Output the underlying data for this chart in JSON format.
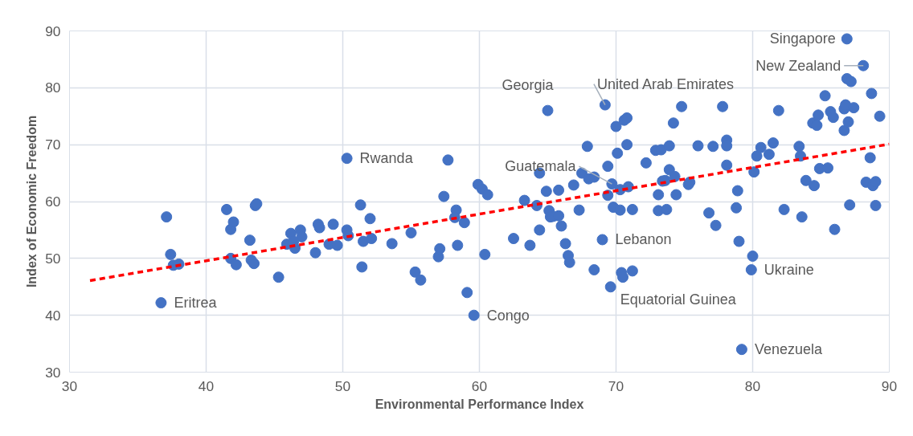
{
  "chart_data": {
    "type": "scatter",
    "xlabel": "Environmental Performance Index",
    "ylabel": "Index of Economic Freedom",
    "xlim": [
      30,
      90
    ],
    "ylim": [
      30,
      90
    ],
    "xticks": [
      30,
      40,
      50,
      60,
      70,
      80,
      90
    ],
    "yticks": [
      30,
      40,
      50,
      60,
      70,
      80,
      90
    ],
    "grid": true,
    "marker": "circle",
    "series": [
      {
        "type": "scatter",
        "color": "#4472c4",
        "x": [
          36.7,
          37.1,
          37.4,
          37.6,
          38.0,
          41.5,
          41.8,
          42.0,
          41.8,
          42.2,
          43.2,
          43.3,
          43.5,
          43.6,
          43.7,
          45.3,
          45.9,
          46.2,
          46.4,
          46.5,
          46.9,
          47.0,
          48.0,
          48.2,
          48.3,
          49.0,
          49.3,
          49.6,
          50.3,
          50.4,
          50.3,
          51.3,
          51.4,
          51.5,
          52.0,
          52.1,
          53.6,
          55.0,
          55.3,
          55.7,
          57.0,
          57.1,
          57.4,
          57.7,
          58.3,
          58.2,
          58.4,
          58.9,
          59.1,
          59.6,
          59.9,
          60.2,
          60.4,
          60.6,
          62.5,
          63.3,
          63.7,
          64.2,
          64.4,
          64.4,
          65.0,
          64.9,
          65.1,
          65.4,
          65.2,
          65.8,
          66.0,
          66.5,
          66.3,
          66.6,
          66.9,
          65.8,
          67.3,
          67.5,
          67.9,
          68.0,
          68.4,
          68.4,
          69.0,
          69.4,
          69.4,
          69.6,
          69.8,
          69.7,
          69.2,
          70.0,
          70.1,
          70.3,
          70.3,
          70.4,
          70.5,
          70.6,
          70.8,
          70.8,
          70.9,
          71.2,
          71.2,
          72.2,
          72.9,
          73.1,
          73.1,
          73.3,
          73.4,
          73.7,
          73.6,
          73.9,
          73.9,
          74.2,
          74.4,
          74.3,
          74.8,
          75.3,
          75.4,
          76.0,
          77.1,
          76.8,
          77.3,
          77.8,
          78.1,
          78.1,
          78.1,
          78.8,
          78.9,
          79.0,
          79.2,
          79.9,
          80.0,
          80.1,
          80.3,
          80.6,
          81.2,
          81.5,
          81.9,
          82.3,
          83.4,
          83.5,
          83.6,
          83.9,
          84.4,
          84.5,
          84.8,
          84.9,
          84.7,
          85.3,
          85.7,
          85.9,
          85.5,
          86.0,
          86.7,
          86.7,
          86.8,
          86.9,
          87.0,
          87.2,
          87.4,
          87.1,
          86.9,
          88.1,
          88.3,
          88.6,
          88.7,
          88.8,
          89.0,
          89.0,
          89.3
        ],
        "values": [
          42.2,
          57.3,
          50.7,
          48.8,
          49.0,
          58.6,
          55.1,
          56.4,
          50.0,
          48.9,
          53.2,
          49.7,
          49.1,
          59.3,
          59.6,
          46.7,
          52.5,
          54.4,
          53.0,
          51.8,
          55.0,
          53.8,
          51.0,
          56.0,
          55.4,
          52.5,
          56.0,
          52.3,
          55.0,
          54.0,
          67.6,
          59.4,
          48.5,
          53.0,
          57.0,
          53.5,
          52.6,
          54.5,
          47.6,
          46.2,
          50.3,
          51.7,
          60.9,
          67.3,
          58.5,
          57.2,
          52.3,
          56.3,
          44.0,
          40.0,
          63.0,
          62.2,
          50.7,
          61.2,
          53.5,
          60.2,
          52.3,
          59.3,
          55.0,
          65.0,
          76.0,
          61.8,
          58.4,
          57.4,
          57.3,
          57.5,
          55.7,
          50.5,
          52.6,
          49.3,
          62.9,
          62.0,
          58.5,
          65.0,
          69.7,
          64.0,
          64.3,
          48.0,
          53.3,
          61.1,
          66.2,
          45.0,
          59.0,
          63.1,
          77.0,
          73.2,
          68.5,
          58.5,
          62.1,
          47.5,
          46.7,
          74.3,
          74.7,
          70.0,
          62.6,
          58.6,
          47.8,
          66.8,
          69.0,
          58.4,
          61.2,
          69.1,
          63.6,
          58.6,
          63.7,
          65.6,
          69.8,
          73.8,
          61.2,
          64.4,
          76.7,
          63.0,
          63.4,
          69.8,
          69.7,
          58.0,
          55.8,
          76.7,
          70.8,
          69.8,
          66.4,
          58.9,
          61.9,
          53.0,
          34.0,
          48.0,
          50.4,
          65.2,
          68.0,
          69.5,
          68.3,
          70.3,
          76.0,
          58.6,
          69.7,
          68.0,
          57.3,
          63.7,
          73.8,
          62.8,
          75.2,
          65.8,
          73.4,
          78.6,
          75.8,
          74.8,
          65.9,
          55.1,
          72.5,
          76.3,
          77.0,
          81.6,
          74.0,
          81.1,
          76.5,
          59.4,
          88.6,
          83.9,
          63.4,
          67.7,
          79.0,
          62.8,
          63.5,
          59.3,
          75.0
        ]
      },
      {
        "type": "line",
        "color": "#ff0000",
        "line_style": "dashed",
        "marker": "none",
        "x": [
          31.5,
          90
        ],
        "values": [
          46.1,
          70.1
        ]
      }
    ],
    "annotations": [
      {
        "text": "Singapore",
        "x": 86.9,
        "y": 88.6
      },
      {
        "text": "New Zealand",
        "x": 88.1,
        "y": 83.9
      },
      {
        "text": "United Arab Emirates",
        "x": 69.2,
        "y": 77.0
      },
      {
        "text": "Georgia",
        "x": 65.0,
        "y": 76.0
      },
      {
        "text": "Guatemala",
        "x": 69.7,
        "y": 63.1
      },
      {
        "text": "Rwanda",
        "x": 50.3,
        "y": 67.6
      },
      {
        "text": "Lebanon",
        "x": 69.0,
        "y": 53.3
      },
      {
        "text": "Eritrea",
        "x": 36.7,
        "y": 42.2
      },
      {
        "text": "Ukraine",
        "x": 79.9,
        "y": 48.0
      },
      {
        "text": "Congo",
        "x": 59.6,
        "y": 40.0
      },
      {
        "text": "Equatorial Guinea",
        "x": 69.6,
        "y": 45.0
      },
      {
        "text": "Venezuela",
        "x": 79.2,
        "y": 34.0
      }
    ]
  }
}
